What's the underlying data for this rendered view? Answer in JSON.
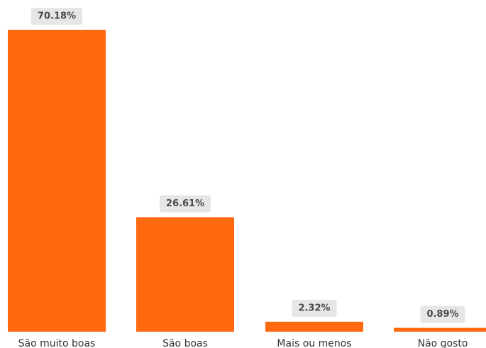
{
  "chart_data": {
    "type": "bar",
    "categories": [
      "São muito boas",
      "São boas",
      "Mais ou menos",
      "Não gosto"
    ],
    "values": [
      70.18,
      26.61,
      2.32,
      0.89
    ],
    "data_labels": [
      "70.18%",
      "26.61%",
      "2.32%",
      "0.89%"
    ],
    "unit": "%",
    "title": "",
    "xlabel": "",
    "ylabel": "",
    "ylim": [
      0,
      70.18
    ],
    "grid": false,
    "legend": "none",
    "colors": {
      "bar": "#ff6a10",
      "label_background": "#e6e6e6",
      "label_text": "#4a4a4a",
      "axis_text": "#333333"
    }
  }
}
